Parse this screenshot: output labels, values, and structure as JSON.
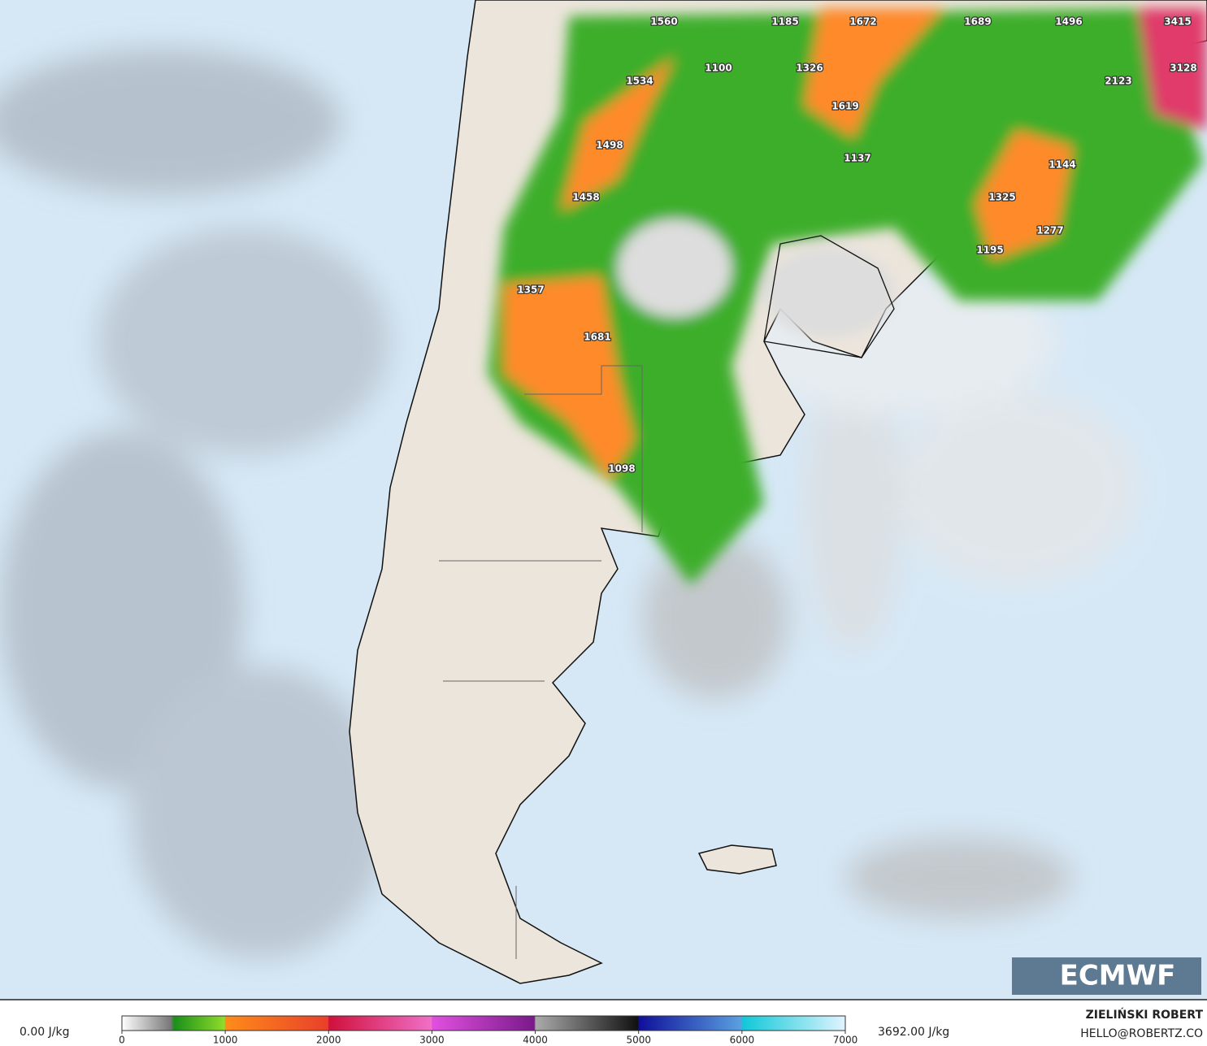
{
  "map": {
    "values": [
      1560,
      1185,
      1672,
      1689,
      1496,
      3415,
      1100,
      1326,
      3128,
      1534,
      2123,
      1619,
      1498,
      1137,
      1144,
      1458,
      1325,
      1277,
      1195,
      1357,
      1681,
      1098
    ],
    "logo": "ECMWF"
  },
  "colorbar": {
    "min_label": "0.00 J/kg",
    "max_label": "3692.00 J/kg",
    "lim": [
      0,
      7000
    ],
    "ticks": [
      0,
      1000,
      2000,
      3000,
      4000,
      5000,
      6000,
      7000
    ]
  },
  "credits": {
    "author": "ZIELIŃSKI ROBERT",
    "contact": "HELLO@ROBERTZ.CO"
  }
}
